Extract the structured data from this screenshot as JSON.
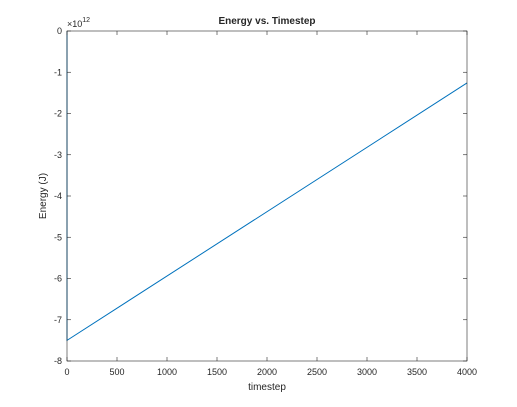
{
  "chart_data": {
    "type": "line",
    "title": "Energy vs. Timestep",
    "xlabel": "timestep",
    "ylabel": "Energy (J)",
    "y_exponent_base": "×10",
    "y_exponent_power": "12",
    "xlim": [
      0,
      4000
    ],
    "ylim": [
      -8,
      0
    ],
    "xticks": [
      0,
      500,
      1000,
      1500,
      2000,
      2500,
      3000,
      3500,
      4000
    ],
    "yticks": [
      -8,
      -7,
      -6,
      -5,
      -4,
      -3,
      -2,
      -1,
      0
    ],
    "xtick_labels": [
      "0",
      "500",
      "1000",
      "1500",
      "2000",
      "2500",
      "3000",
      "3500",
      "4000"
    ],
    "ytick_labels": [
      "-8",
      "-7",
      "-6",
      "-5",
      "-4",
      "-3",
      "-2",
      "-1",
      "0"
    ],
    "grid": false,
    "legend": "none",
    "series": [
      {
        "color": "#0072bd",
        "x": [
          0,
          0,
          4000
        ],
        "y": [
          0,
          -7.5,
          -1.26
        ]
      }
    ]
  }
}
